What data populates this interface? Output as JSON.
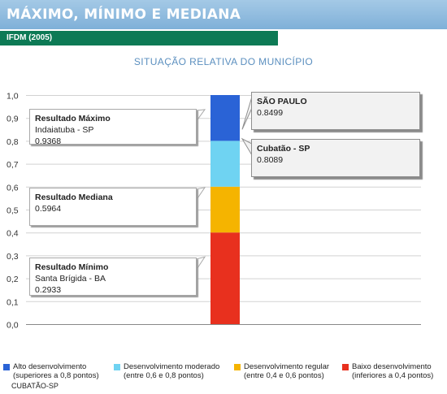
{
  "header": {
    "title": "MÁXIMO, MÍNIMO E MEDIANA"
  },
  "subheader": {
    "label": "IFDM (2005)"
  },
  "chart_data": {
    "type": "bar",
    "title": "SITUAÇÃO RELATIVA DO MUNICÍPIO",
    "ylim": [
      0,
      1
    ],
    "yticks": [
      "0,0",
      "0,1",
      "0,2",
      "0,3",
      "0,4",
      "0,5",
      "0,6",
      "0,7",
      "0,8",
      "0,9",
      "1,0"
    ],
    "grid": true,
    "bands": [
      {
        "from": 0.0,
        "to": 0.4,
        "color": "#e8301e",
        "label": "Baixo desenvolvimento",
        "range": "(inferiores a 0,4 pontos)"
      },
      {
        "from": 0.4,
        "to": 0.6,
        "color": "#f5b400",
        "label": "Desenvolvimento regular",
        "range": "(entre 0,4 e 0,6 pontos)"
      },
      {
        "from": 0.6,
        "to": 0.8,
        "color": "#6fd3f2",
        "label": "Desenvolvimento moderado",
        "range": "(entre 0,6 e 0,8 pontos)"
      },
      {
        "from": 0.8,
        "to": 1.0,
        "color": "#2a63d6",
        "label": "Alto desenvolvimento",
        "range": "(superiores a 0,8 pontos)"
      }
    ],
    "left_callouts": [
      {
        "title": "Resultado Máximo",
        "place": "Indaiatuba - SP",
        "value": 0.9368,
        "value_text": "0.9368"
      },
      {
        "title": "Resultado Mediana",
        "place": "",
        "value": 0.5964,
        "value_text": "0.5964"
      },
      {
        "title": "Resultado Mínimo",
        "place": "Santa Brígida - BA",
        "value": 0.2933,
        "value_text": "0.2933"
      }
    ],
    "right_callouts": [
      {
        "title": "SÃO PAULO",
        "value": 0.8499,
        "value_text": "0.8499"
      },
      {
        "title": "Cubatão - SP",
        "value": 0.8089,
        "value_text": "0.8089"
      }
    ],
    "footnote": "CUBATÃO-SP"
  }
}
